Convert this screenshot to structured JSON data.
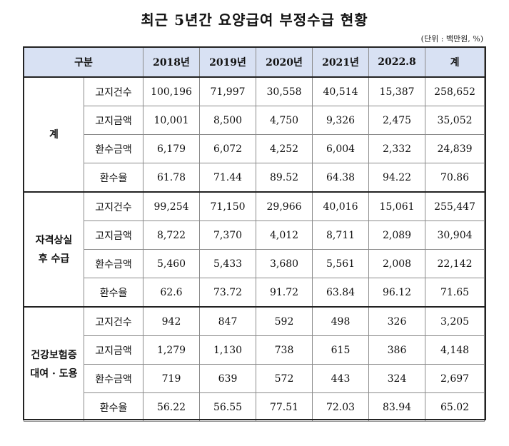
{
  "title": "최근 5년간 요양급여 부정수급 현황",
  "unit": "(단위 : 백만원, %)",
  "header": {
    "category": "구분",
    "years": [
      "2018년",
      "2019년",
      "2020년",
      "2021년",
      "2022.8",
      "계"
    ]
  },
  "groups": [
    {
      "label_lines": [
        "계"
      ],
      "rows": [
        {
          "metric": "고지건수",
          "values": [
            "100,196",
            "71,997",
            "30,558",
            "40,514",
            "15,387",
            "258,652"
          ]
        },
        {
          "metric": "고지금액",
          "values": [
            "10,001",
            "8,500",
            "4,750",
            "9,326",
            "2,475",
            "35,052"
          ]
        },
        {
          "metric": "환수금액",
          "values": [
            "6,179",
            "6,072",
            "4,252",
            "6,004",
            "2,332",
            "24,839"
          ]
        },
        {
          "metric": "환수율",
          "values": [
            "61.78",
            "71.44",
            "89.52",
            "64.38",
            "94.22",
            "70.86"
          ]
        }
      ]
    },
    {
      "label_lines": [
        "자격상실",
        "후 수급"
      ],
      "rows": [
        {
          "metric": "고지건수",
          "values": [
            "99,254",
            "71,150",
            "29,966",
            "40,016",
            "15,061",
            "255,447"
          ]
        },
        {
          "metric": "고지금액",
          "values": [
            "8,722",
            "7,370",
            "4,012",
            "8,711",
            "2,089",
            "30,904"
          ]
        },
        {
          "metric": "환수금액",
          "values": [
            "5,460",
            "5,433",
            "3,680",
            "5,561",
            "2,008",
            "22,142"
          ]
        },
        {
          "metric": "환수율",
          "values": [
            "62.6",
            "73.72",
            "91.72",
            "63.84",
            "96.12",
            "71.65"
          ]
        }
      ]
    },
    {
      "label_lines": [
        "건강보험증",
        "대여 · 도용"
      ],
      "rows": [
        {
          "metric": "고지건수",
          "values": [
            "942",
            "847",
            "592",
            "498",
            "326",
            "3,205"
          ]
        },
        {
          "metric": "고지금액",
          "values": [
            "1,279",
            "1,130",
            "738",
            "615",
            "386",
            "4,148"
          ]
        },
        {
          "metric": "환수금액",
          "values": [
            "719",
            "639",
            "572",
            "443",
            "324",
            "2,697"
          ]
        },
        {
          "metric": "환수율",
          "values": [
            "56.22",
            "56.55",
            "77.51",
            "72.03",
            "83.94",
            "65.02"
          ]
        }
      ]
    }
  ],
  "colors": {
    "header_bg": "#d8e1f3",
    "grid": "#8a8a8a",
    "heavy_border": "#222222"
  }
}
